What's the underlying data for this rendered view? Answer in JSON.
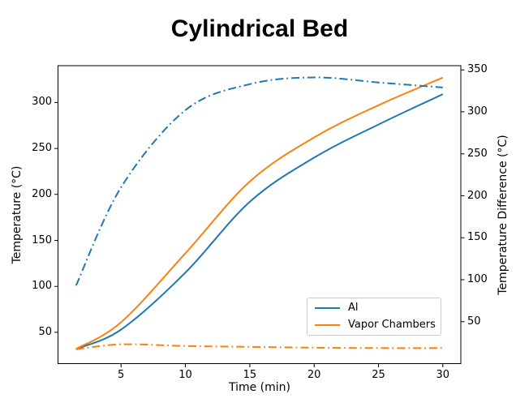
{
  "title": "Cylindrical Bed",
  "chart_data": {
    "type": "line",
    "title": "Cylindrical Bed",
    "xlabel": "Time (min)",
    "ylabel_left": "Temperature (°C)",
    "ylabel_right": "Temperature Difference (°C)",
    "x_ticks": [
      5,
      10,
      15,
      20,
      25,
      30
    ],
    "y_left_ticks": [
      50,
      100,
      150,
      200,
      250,
      300
    ],
    "y_right_ticks": [
      50,
      100,
      150,
      200,
      250,
      300,
      350
    ],
    "xlim": [
      0.1,
      31.4
    ],
    "ylim_left": [
      16,
      340
    ],
    "ylim_right": [
      0,
      355
    ],
    "grid": false,
    "x": [
      1.5,
      5,
      10,
      15,
      20,
      25,
      30
    ],
    "series": [
      {
        "name": "Al temperature",
        "axis": "left",
        "style": "solid",
        "color": "#1f77b4",
        "values": [
          32,
          53,
          115,
          192,
          240,
          276,
          309
        ]
      },
      {
        "name": "Vapor Chambers temperature",
        "axis": "left",
        "style": "solid",
        "color": "#ff7f0e",
        "values": [
          32,
          61,
          136,
          214,
          262,
          297,
          327
        ]
      },
      {
        "name": "Al temperature difference",
        "axis": "right",
        "style": "dashdot",
        "color": "#1f77b4",
        "values": [
          93,
          210,
          302,
          333,
          341,
          335,
          329
        ]
      },
      {
        "name": "Vapor Chambers temperature difference",
        "axis": "right",
        "style": "dashdot",
        "color": "#ff7f0e",
        "values": [
          17,
          23,
          21,
          20,
          19,
          18.5,
          18.5
        ]
      }
    ],
    "legend": {
      "position": "lower right",
      "entries": [
        {
          "label": "Al",
          "color": "#1f77b4"
        },
        {
          "label": "Vapor Chambers",
          "color": "#ff7f0e"
        }
      ]
    }
  }
}
